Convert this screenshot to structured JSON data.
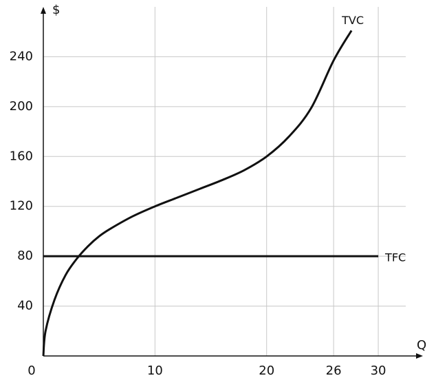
{
  "chart_data": {
    "type": "line",
    "xlabel": "Q",
    "ylabel": "$",
    "xlim": [
      0,
      34
    ],
    "ylim": [
      0,
      280
    ],
    "xticks": [
      0,
      10,
      20,
      26,
      30
    ],
    "yticks": [
      40,
      80,
      120,
      160,
      200,
      240
    ],
    "grid": true,
    "series": [
      {
        "name": "TVC",
        "color": "#111111",
        "x": [
          0,
          0.2,
          1,
          2,
          3,
          4,
          5,
          6,
          8,
          10,
          12,
          14,
          16,
          18,
          20,
          22,
          24,
          26,
          27.6
        ],
        "values": [
          0,
          20,
          45,
          65,
          78,
          88,
          96,
          102,
          112,
          120,
          127,
          134,
          141,
          149,
          160,
          176,
          199,
          237,
          261
        ]
      },
      {
        "name": "TFC",
        "color": "#111111",
        "x": [
          0,
          30
        ],
        "values": [
          80,
          80
        ]
      }
    ]
  }
}
